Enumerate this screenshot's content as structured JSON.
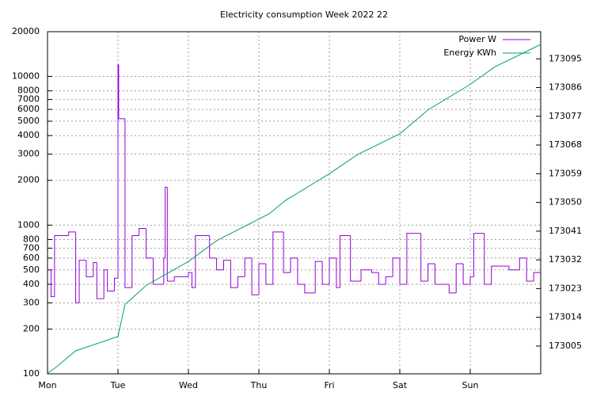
{
  "chart_data": {
    "type": "line",
    "title": "Electricity consumption Week 2022 22",
    "xlim": [
      0,
      7
    ],
    "xticks": [
      {
        "value": 0,
        "label": "Mon"
      },
      {
        "value": 1,
        "label": "Tue"
      },
      {
        "value": 2,
        "label": "Wed"
      },
      {
        "value": 3,
        "label": "Thu"
      },
      {
        "value": 4,
        "label": "Fri"
      },
      {
        "value": 5,
        "label": "Sat"
      },
      {
        "value": 6,
        "label": "Sun"
      }
    ],
    "ylim": [
      100,
      20000
    ],
    "log_y": true,
    "yticks": [
      100,
      200,
      300,
      400,
      500,
      600,
      700,
      800,
      1000,
      2000,
      3000,
      4000,
      5000,
      6000,
      7000,
      8000,
      10000,
      20000
    ],
    "y2lim": [
      172996.3,
      173103.5
    ],
    "y2ticks": [
      173005,
      173014,
      173023,
      173032,
      173041,
      173050,
      173059,
      173068,
      173077,
      173086,
      173095
    ],
    "grid": true,
    "legend": "top-right",
    "series": [
      {
        "name": "Power W",
        "color": "#9400d3",
        "step": true,
        "x": [
          0,
          0.05,
          0.1,
          0.3,
          0.4,
          0.45,
          0.55,
          0.65,
          0.7,
          0.8,
          0.85,
          0.95,
          1.0,
          1.01,
          1.1,
          1.2,
          1.3,
          1.4,
          1.5,
          1.65,
          1.67,
          1.7,
          1.8,
          2.0,
          2.05,
          2.1,
          2.3,
          2.4,
          2.5,
          2.6,
          2.7,
          2.8,
          2.9,
          3.0,
          3.1,
          3.2,
          3.35,
          3.45,
          3.55,
          3.65,
          3.8,
          3.9,
          4.0,
          4.1,
          4.15,
          4.3,
          4.45,
          4.6,
          4.7,
          4.8,
          4.9,
          5.0,
          5.1,
          5.3,
          5.4,
          5.5,
          5.7,
          5.8,
          5.9,
          6.0,
          6.05,
          6.2,
          6.3,
          6.55,
          6.7,
          6.8,
          6.9
        ],
        "values": [
          500,
          330,
          850,
          900,
          300,
          580,
          450,
          560,
          320,
          500,
          360,
          440,
          12000,
          5200,
          380,
          850,
          950,
          600,
          400,
          600,
          1800,
          420,
          450,
          480,
          380,
          850,
          600,
          500,
          580,
          380,
          450,
          600,
          340,
          550,
          400,
          900,
          480,
          600,
          400,
          350,
          570,
          400,
          600,
          380,
          850,
          420,
          500,
          480,
          400,
          450,
          600,
          400,
          880,
          420,
          550,
          400,
          350,
          550,
          400,
          450,
          880,
          400,
          530,
          500,
          600,
          420,
          480
        ]
      },
      {
        "name": "Energy KWh",
        "color": "#009e73",
        "axis": "y2",
        "x": [
          0,
          0.1,
          0.4,
          1.0,
          1.1,
          1.4,
          2.0,
          2.4,
          3.15,
          3.37,
          4.0,
          4.4,
          5.0,
          5.4,
          6.0,
          6.35,
          7.0
        ],
        "values": [
          172996.5,
          172998,
          173003.5,
          173008,
          173018,
          173024,
          173031.5,
          173038,
          173046.5,
          173050.5,
          173059,
          173065,
          173071.5,
          173079,
          173087,
          173092.5,
          173099.5
        ]
      }
    ]
  }
}
